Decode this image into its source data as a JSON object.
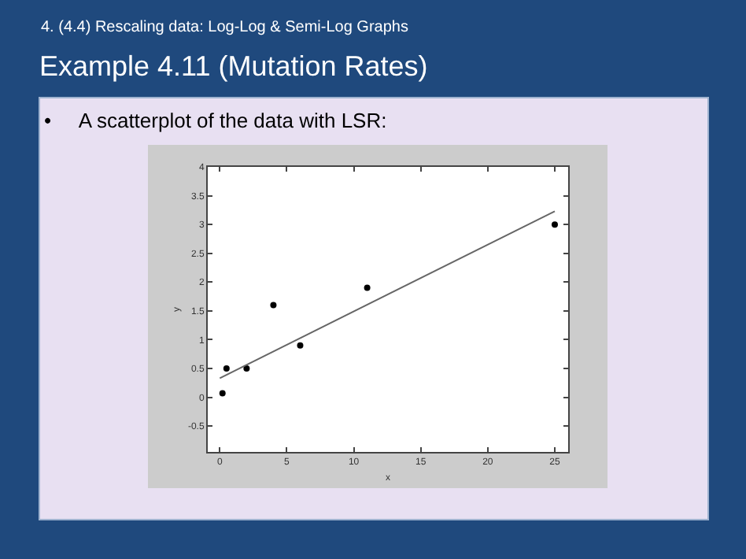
{
  "chart_data": {
    "type": "scatter",
    "title": "Example 4.11 (Mutation Rates)",
    "subtitle": "4. (4.4) Rescaling data: Log-Log & Semi-Log Graphs",
    "annotations": [
      "•     A scatterplot of the data with LSR:"
    ],
    "xlabel": "x",
    "ylabel": "y",
    "series": [
      {
        "color": "#000000",
        "marker": "circle",
        "x": [
          0.2,
          0.5,
          2,
          4,
          6,
          11,
          25
        ],
        "values": [
          0.07,
          0.5,
          0.5,
          1.6,
          0.9,
          1.9,
          3.0
        ]
      },
      {
        "type": "line",
        "color": "#666666",
        "x": [
          0,
          25
        ],
        "values": [
          0.33,
          3.23
        ]
      }
    ],
    "xlim": [
      -0.9,
      26
    ],
    "xticks": [
      0,
      5,
      10,
      15,
      20,
      25
    ],
    "ylim": [
      -0.95,
      4
    ],
    "yticks": [
      -0.5,
      0,
      0.5,
      1,
      1.5,
      2,
      2.5,
      3,
      3.5,
      4
    ]
  }
}
